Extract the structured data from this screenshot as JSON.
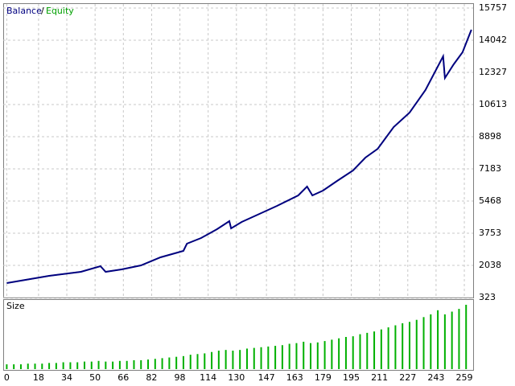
{
  "chart_data": [
    {
      "type": "line",
      "legend_separator": "/",
      "x": [
        0,
        24,
        42,
        53,
        56,
        65,
        76,
        87,
        100,
        102,
        110,
        119,
        126,
        127,
        133,
        142,
        153,
        165,
        170,
        173,
        179,
        187,
        196,
        203,
        210,
        219,
        228,
        237,
        247,
        248,
        253,
        258,
        263
      ],
      "series": [
        {
          "name": "Balance",
          "color": "#000080",
          "values": [
            1095,
            1480,
            1695,
            1995,
            1695,
            1823,
            2038,
            2467,
            2810,
            3195,
            3495,
            3967,
            4396,
            4010,
            4353,
            4739,
            5210,
            5768,
            6239,
            5768,
            6025,
            6539,
            7097,
            7783,
            8254,
            9412,
            10183,
            11384,
            13184,
            12027,
            12756,
            13398,
            14599
          ]
        },
        {
          "name": "Equity",
          "color": "#00a000",
          "values": [
            1095,
            1480,
            1695,
            1995,
            1695,
            1823,
            2038,
            2467,
            2810,
            3195,
            3495,
            3967,
            4396,
            4010,
            4353,
            4739,
            5210,
            5768,
            6239,
            5768,
            6025,
            6539,
            7097,
            7783,
            8254,
            9412,
            10183,
            11384,
            13184,
            12027,
            12756,
            13398,
            14599
          ]
        }
      ],
      "xlim": [
        -2,
        264
      ],
      "ylim": [
        323,
        15757
      ],
      "yticks": [
        323,
        2038,
        3753,
        5468,
        7183,
        8898,
        10613,
        12327,
        14042,
        15757
      ],
      "grid": true
    },
    {
      "type": "bar",
      "title": "Size",
      "color": "#00b000",
      "x": [
        0,
        4,
        8,
        12,
        16,
        20,
        24,
        28,
        32,
        36,
        40,
        44,
        48,
        52,
        56,
        60,
        64,
        68,
        72,
        76,
        80,
        84,
        88,
        92,
        96,
        100,
        104,
        108,
        112,
        116,
        120,
        124,
        128,
        132,
        136,
        140,
        144,
        148,
        152,
        156,
        160,
        164,
        168,
        172,
        176,
        180,
        184,
        188,
        192,
        196,
        200,
        204,
        208,
        212,
        216,
        220,
        224,
        228,
        232,
        236,
        240,
        244,
        248,
        252,
        256,
        260
      ],
      "values": [
        0.07,
        0.07,
        0.07,
        0.08,
        0.08,
        0.08,
        0.09,
        0.09,
        0.1,
        0.1,
        0.1,
        0.11,
        0.11,
        0.12,
        0.11,
        0.11,
        0.12,
        0.12,
        0.13,
        0.13,
        0.14,
        0.15,
        0.16,
        0.17,
        0.18,
        0.19,
        0.21,
        0.22,
        0.23,
        0.25,
        0.27,
        0.28,
        0.27,
        0.28,
        0.3,
        0.31,
        0.32,
        0.33,
        0.34,
        0.35,
        0.37,
        0.38,
        0.4,
        0.38,
        0.39,
        0.41,
        0.43,
        0.45,
        0.47,
        0.48,
        0.51,
        0.53,
        0.55,
        0.58,
        0.61,
        0.64,
        0.67,
        0.69,
        0.72,
        0.76,
        0.8,
        0.86,
        0.8,
        0.84,
        0.88,
        0.94
      ],
      "xlim": [
        -2,
        264
      ],
      "xticks": [
        0,
        18,
        34,
        50,
        66,
        82,
        98,
        114,
        130,
        147,
        163,
        179,
        195,
        211,
        227,
        243,
        259
      ]
    }
  ]
}
